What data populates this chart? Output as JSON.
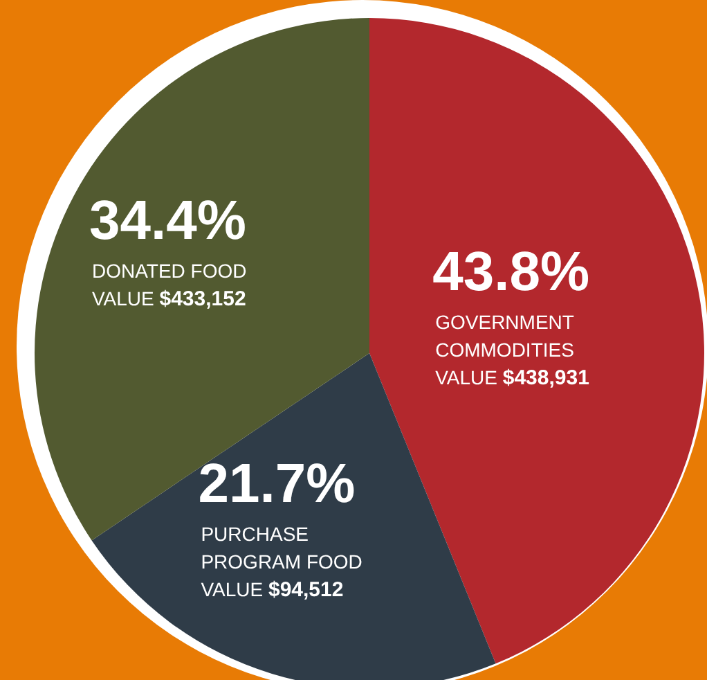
{
  "chart_data": {
    "type": "pie",
    "categories": [
      "GOVERNMENT COMMODITIES",
      "PURCHASE PROGRAM FOOD",
      "DONATED FOOD"
    ],
    "values": [
      43.8,
      21.7,
      34.4
    ],
    "value_labels": [
      "43.8%",
      "21.7%",
      "34.4%"
    ],
    "colors": [
      "#b3282d",
      "#2f3c48",
      "#525a30"
    ],
    "annotations": [
      "VALUE $438,931",
      "VALUE $94,512",
      "VALUE $433,152"
    ],
    "legend": false
  }
}
